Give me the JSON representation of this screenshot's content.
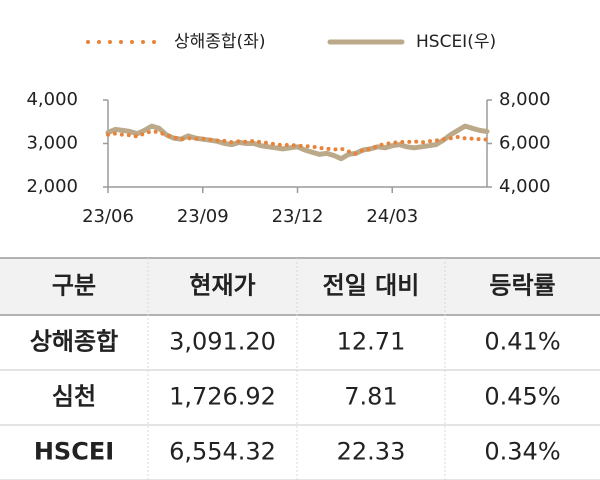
{
  "chart_data": {
    "type": "line",
    "categories": [
      "23/06",
      null,
      null,
      null,
      null,
      null,
      null,
      null,
      null,
      null,
      null,
      null,
      null,
      "23/09",
      null,
      null,
      null,
      null,
      null,
      null,
      null,
      null,
      null,
      null,
      null,
      null,
      "23/12",
      null,
      null,
      null,
      null,
      null,
      null,
      null,
      null,
      null,
      null,
      null,
      null,
      "24/03",
      null,
      null,
      null,
      null,
      null,
      null,
      null,
      null,
      null,
      null,
      null,
      null,
      null
    ],
    "ylim": [
      2000,
      4000
    ],
    "yticks": [
      {
        "value": 2000,
        "label": "2,000"
      },
      {
        "value": 3000,
        "label": "3,000"
      },
      {
        "value": 4000,
        "label": "4,000"
      }
    ],
    "y2lim": [
      4000,
      8000
    ],
    "y2ticks": [
      {
        "value": 4000,
        "label": "4,000"
      },
      {
        "value": 6000,
        "label": "6,000"
      },
      {
        "value": 8000,
        "label": "8,000"
      }
    ],
    "series": [
      {
        "name": "상해종합(좌)",
        "color": "#e8833a",
        "style": "dotted",
        "values": [
          3200,
          3230,
          3200,
          3190,
          3160,
          3230,
          3280,
          3260,
          3190,
          3140,
          3100,
          3120,
          3110,
          3110,
          3090,
          3070,
          3060,
          3030,
          3050,
          3040,
          3060,
          3030,
          3010,
          2980,
          2960,
          2970,
          2950,
          2940,
          2930,
          2900,
          2880,
          2860,
          2880,
          2820,
          2760,
          2850,
          2870,
          2950,
          2990,
          3010,
          3040,
          3030,
          3050,
          3020,
          3050,
          3070,
          3100,
          3120,
          3150,
          3120,
          3110,
          3100,
          3090
        ]
      },
      {
        "name": "HSCEI(우)",
        "color": "#bba98a",
        "style": "solid",
        "axis": "y2",
        "values": [
          6500,
          6650,
          6600,
          6550,
          6450,
          6600,
          6800,
          6700,
          6400,
          6250,
          6200,
          6350,
          6250,
          6200,
          6150,
          6100,
          6000,
          5950,
          6050,
          6000,
          6000,
          5900,
          5850,
          5800,
          5750,
          5800,
          5850,
          5700,
          5600,
          5500,
          5550,
          5450,
          5300,
          5500,
          5550,
          5700,
          5750,
          5850,
          5800,
          5900,
          5950,
          5850,
          5800,
          5850,
          5900,
          5950,
          6150,
          6400,
          6600,
          6800,
          6700,
          6600,
          6554
        ]
      }
    ],
    "legend": "top"
  },
  "table": {
    "header": [
      "구분",
      "현재가",
      "전일 대비",
      "등락률"
    ],
    "rows": [
      [
        "상해종합",
        "3,091.20",
        "12.71",
        "0.41%"
      ],
      [
        "심천",
        "1,726.92",
        "7.81",
        "0.45%"
      ],
      [
        "HSCEI",
        "6,554.32",
        "22.33",
        "0.34%"
      ]
    ]
  }
}
